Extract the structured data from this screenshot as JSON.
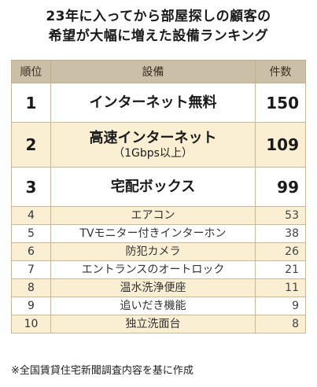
{
  "title_line1": "23年に入ってから部屋探しの顧客の",
  "title_line2": "希望が大幅に増えた設備ランキング",
  "headers": {
    "rank": "順位",
    "item": "設備",
    "count": "件数"
  },
  "rows": [
    {
      "rank": "1",
      "name": "インターネット無料",
      "sub": "",
      "count": "150"
    },
    {
      "rank": "2",
      "name": "高速インターネット",
      "sub": "（1Gbps以上）",
      "count": "109"
    },
    {
      "rank": "3",
      "name": "宅配ボックス",
      "sub": "",
      "count": "99"
    },
    {
      "rank": "4",
      "name": "エアコン",
      "sub": "",
      "count": "53"
    },
    {
      "rank": "5",
      "name": "TVモニター付きインターホン",
      "sub": "",
      "count": "38"
    },
    {
      "rank": "6",
      "name": "防犯カメラ",
      "sub": "",
      "count": "26"
    },
    {
      "rank": "7",
      "name": "エントランスのオートロック",
      "sub": "",
      "count": "21"
    },
    {
      "rank": "8",
      "name": "温水洗浄便座",
      "sub": "",
      "count": "11"
    },
    {
      "rank": "9",
      "name": "追いだき機能",
      "sub": "",
      "count": "9"
    },
    {
      "rank": "10",
      "name": "独立洗面台",
      "sub": "",
      "count": "8"
    }
  ],
  "note": "※全国賃貸住宅新聞調査内容を基に作成",
  "chart_data": {
    "type": "table",
    "title": "23年に入ってから部屋探しの顧客の希望が大幅に増えた設備ランキング",
    "columns": [
      "順位",
      "設備",
      "件数"
    ],
    "categories": [
      "インターネット無料",
      "高速インターネット（1Gbps以上）",
      "宅配ボックス",
      "エアコン",
      "TVモニター付きインターホン",
      "防犯カメラ",
      "エントランスのオートロック",
      "温水洗浄便座",
      "追いだき機能",
      "独立洗面台"
    ],
    "values": [
      150,
      109,
      99,
      53,
      38,
      26,
      21,
      11,
      9,
      8
    ]
  }
}
